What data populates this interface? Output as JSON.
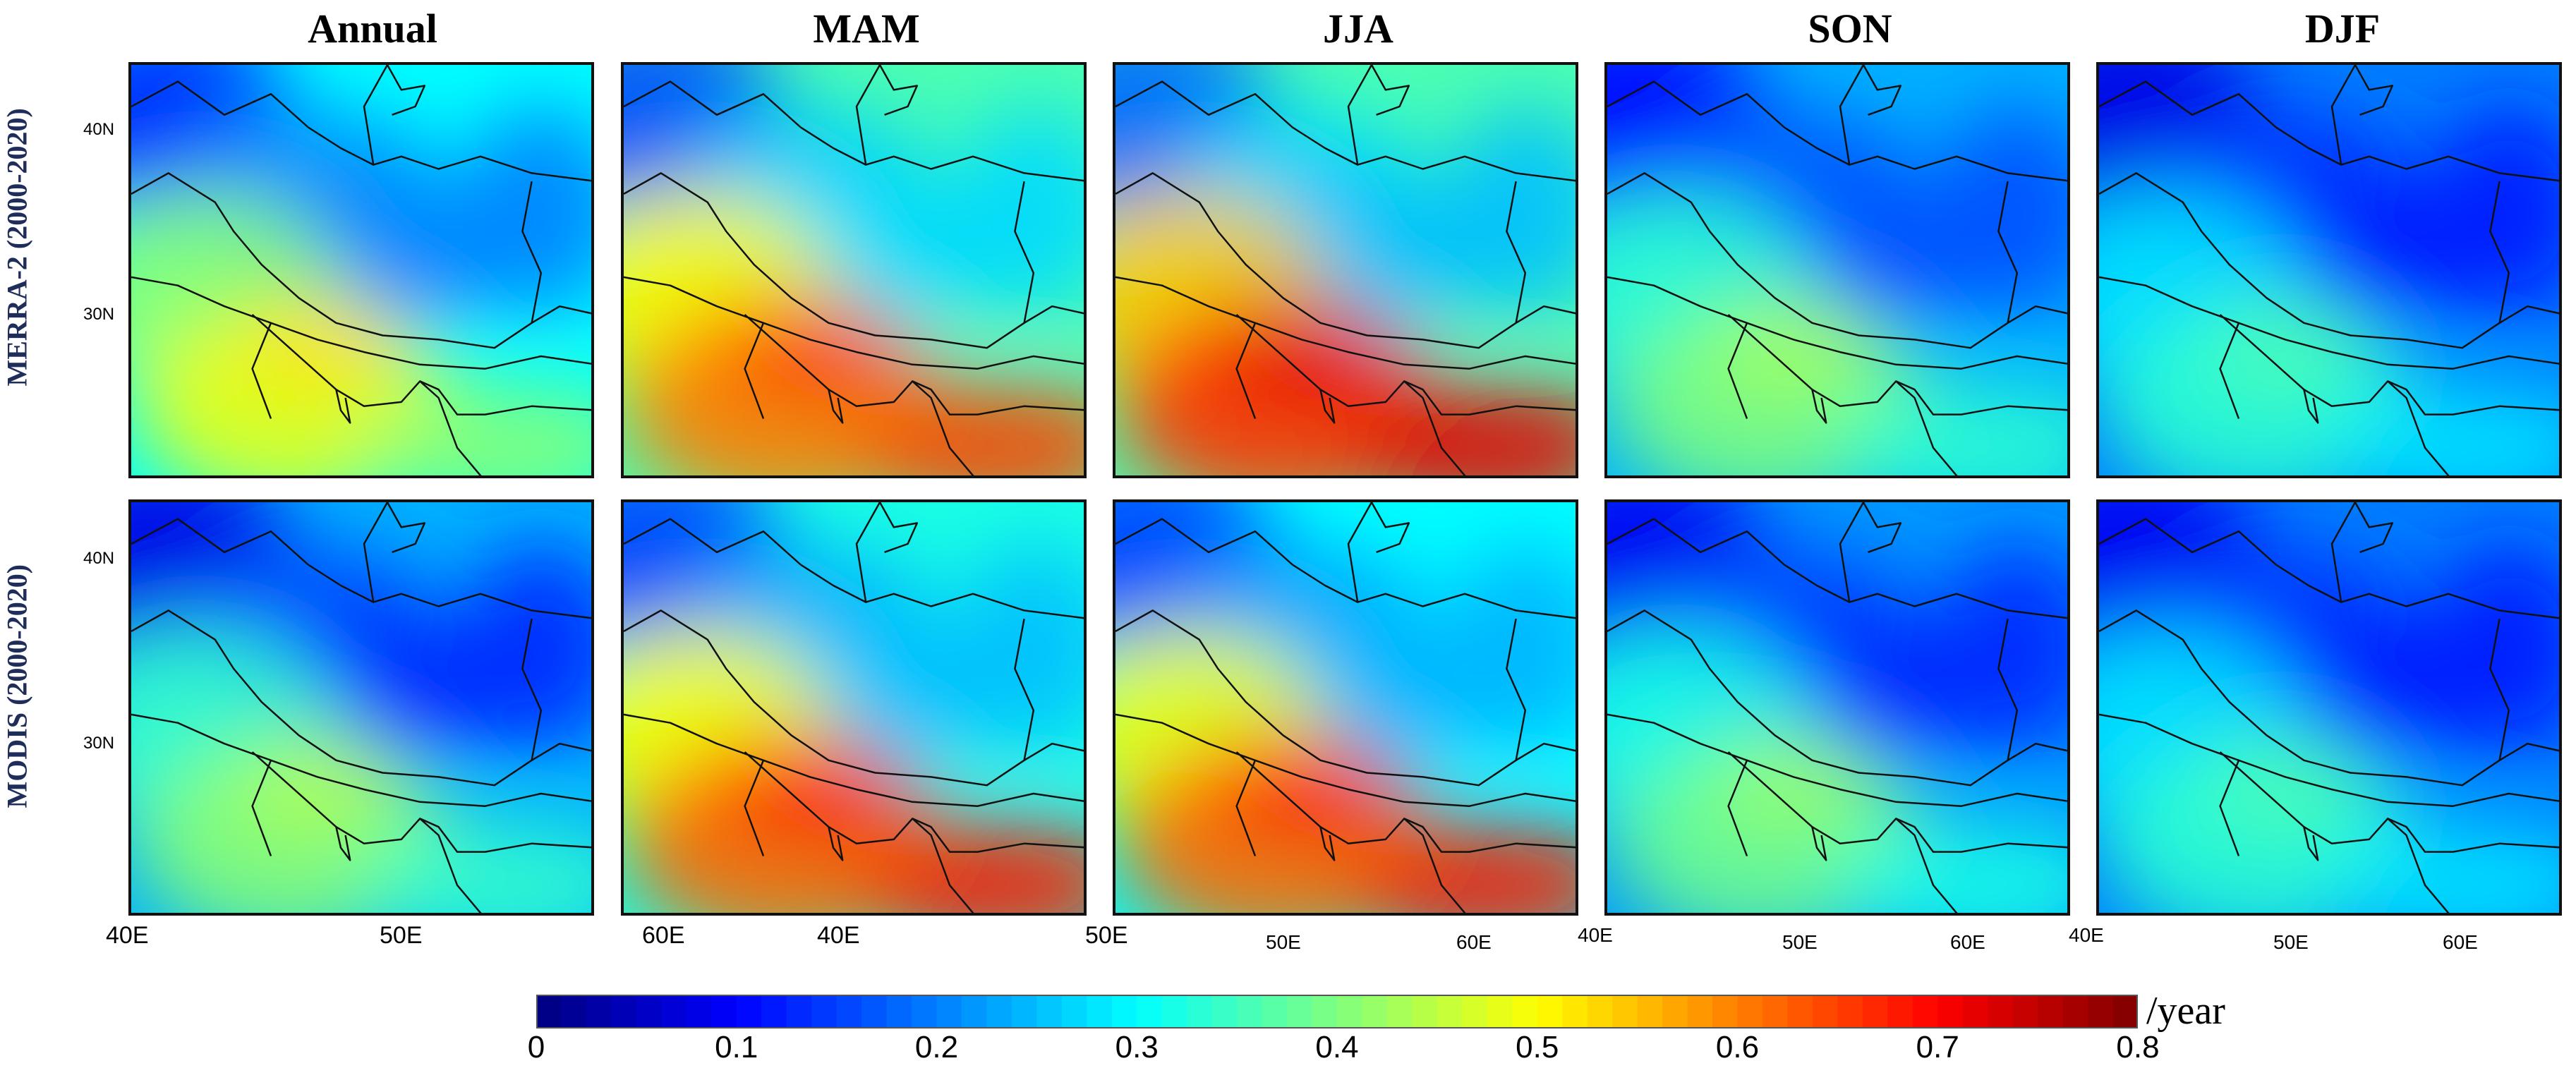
{
  "chart_data": {
    "type": "heatmap",
    "description_units": "/year",
    "columns": [
      "Annual",
      "MAM",
      "JJA",
      "SON",
      "DJF"
    ],
    "rows": [
      "MERRA-2 (2000-2020)",
      "MODIS (2000-2020)"
    ],
    "latitude_ticks": {
      "top_row": [
        "40N",
        "30N"
      ],
      "bottom_row": [
        "40N",
        "30N"
      ]
    },
    "longitude_ticks": {
      "Annual": [
        "40E",
        "50E"
      ],
      "MAM": [
        "60E",
        "40E",
        "50E"
      ],
      "JJA": [
        "50E",
        "60E",
        "40E"
      ],
      "SON": [
        "50E",
        "60E",
        "40E"
      ],
      "DJF": [
        "50E",
        "60E"
      ]
    },
    "colorbar": {
      "range": [
        0,
        0.8
      ],
      "ticks": [
        "0",
        "0.1",
        "0.2",
        "0.3",
        "0.4",
        "0.5",
        "0.6",
        "0.7",
        "0.8"
      ],
      "unit": "/year",
      "colormap": [
        "#00007f",
        "#0000ff",
        "#007fff",
        "#00ffff",
        "#7fff7f",
        "#ffff00",
        "#ff7f00",
        "#ff0000",
        "#7f0000"
      ]
    },
    "panels": [
      {
        "row": "MERRA-2 (2000-2020)",
        "season": "Annual",
        "background": 0.3,
        "gulf_max": 0.52,
        "northwest_min": 0.13,
        "plateau_min": 0.2
      },
      {
        "row": "MERRA-2 (2000-2020)",
        "season": "MAM",
        "background": 0.36,
        "gulf_max": 0.65,
        "northwest_min": 0.16,
        "plateau_min": 0.27
      },
      {
        "row": "MERRA-2 (2000-2020)",
        "season": "JJA",
        "background": 0.36,
        "gulf_max": 0.72,
        "northwest_min": 0.18,
        "plateau_min": 0.25
      },
      {
        "row": "MERRA-2 (2000-2020)",
        "season": "SON",
        "background": 0.24,
        "gulf_max": 0.43,
        "northwest_min": 0.1,
        "plateau_min": 0.16
      },
      {
        "row": "MERRA-2 (2000-2020)",
        "season": "DJF",
        "background": 0.2,
        "gulf_max": 0.36,
        "northwest_min": 0.08,
        "plateau_min": 0.12
      },
      {
        "row": "MODIS (2000-2020)",
        "season": "Annual",
        "background": 0.24,
        "gulf_max": 0.44,
        "northwest_min": 0.08,
        "plateau_min": 0.13
      },
      {
        "row": "MODIS (2000-2020)",
        "season": "MAM",
        "background": 0.32,
        "gulf_max": 0.68,
        "northwest_min": 0.15,
        "plateau_min": 0.25
      },
      {
        "row": "MODIS (2000-2020)",
        "season": "JJA",
        "background": 0.3,
        "gulf_max": 0.68,
        "northwest_min": 0.15,
        "plateau_min": 0.24
      },
      {
        "row": "MODIS (2000-2020)",
        "season": "SON",
        "background": 0.22,
        "gulf_max": 0.42,
        "northwest_min": 0.09,
        "plateau_min": 0.13
      },
      {
        "row": "MODIS (2000-2020)",
        "season": "DJF",
        "background": 0.2,
        "gulf_max": 0.36,
        "northwest_min": 0.09,
        "plateau_min": 0.12
      }
    ]
  }
}
